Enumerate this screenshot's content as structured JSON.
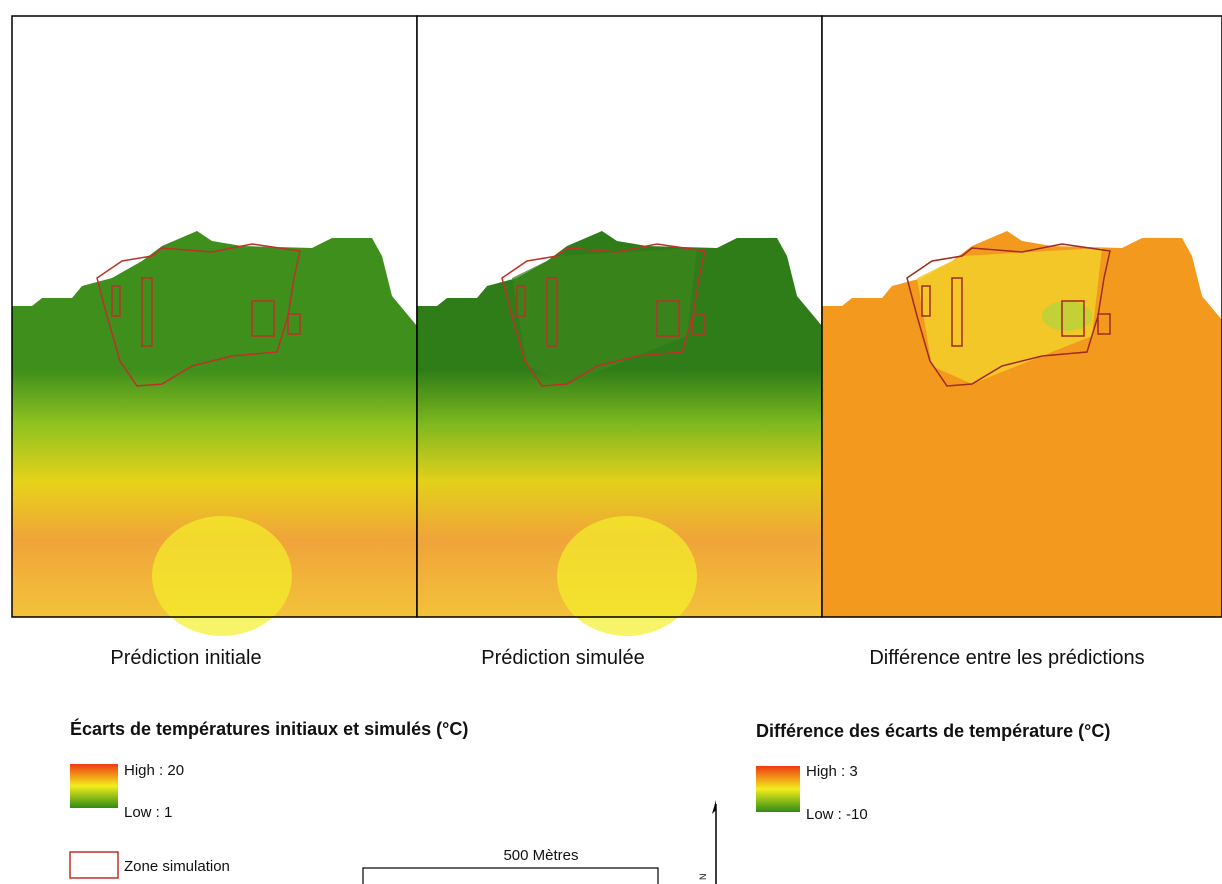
{
  "panels": [
    {
      "caption": "Prédiction initiale"
    },
    {
      "caption": "Prédiction simulée"
    },
    {
      "caption": "Différence entre les prédictions"
    }
  ],
  "legend_left": {
    "title": "Écarts de températures initiaux et simulés (°C)",
    "high": "High : 20",
    "low": "Low : 1",
    "zone": "Zone simulation"
  },
  "legend_right": {
    "title": "Différence des écarts de température (°C)",
    "high": "High : 3",
    "low": "Low : -10"
  },
  "scale_bar": {
    "label": "500 Mètres"
  },
  "north_arrow": {
    "label": "N"
  }
}
